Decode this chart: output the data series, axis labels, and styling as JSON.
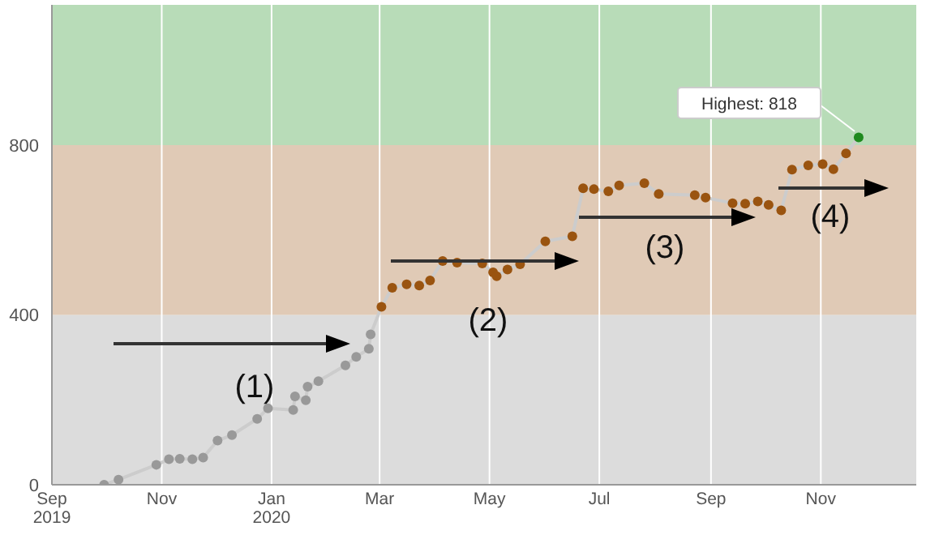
{
  "chart_data": {
    "type": "line",
    "x": [
      "2019-09-30",
      "2019-10-08",
      "2019-10-29",
      "2019-11-05",
      "2019-11-11",
      "2019-11-18",
      "2019-11-24",
      "2019-12-02",
      "2019-12-10",
      "2019-12-24",
      "2019-12-30",
      "2020-01-13",
      "2020-01-14",
      "2020-01-20",
      "2020-01-21",
      "2020-01-27",
      "2020-02-11",
      "2020-02-17",
      "2020-02-24",
      "2020-02-25",
      "2020-03-02",
      "2020-03-08",
      "2020-03-16",
      "2020-03-23",
      "2020-03-29",
      "2020-04-05",
      "2020-04-13",
      "2020-04-27",
      "2020-05-03",
      "2020-05-05",
      "2020-05-11",
      "2020-05-18",
      "2020-06-01",
      "2020-06-16",
      "2020-06-22",
      "2020-06-28",
      "2020-07-06",
      "2020-07-12",
      "2020-07-26",
      "2020-08-03",
      "2020-08-23",
      "2020-08-29",
      "2020-09-13",
      "2020-09-20",
      "2020-09-27",
      "2020-10-03",
      "2020-10-10",
      "2020-10-16",
      "2020-10-25",
      "2020-11-02",
      "2020-11-08",
      "2020-11-15",
      "2020-11-22"
    ],
    "series": [
      {
        "color": "#cccccc",
        "values": [
          0,
          12,
          47,
          60,
          61,
          60,
          64,
          104,
          117,
          155,
          180,
          176,
          208,
          199,
          231,
          244,
          281,
          301,
          320,
          354,
          419,
          464,
          472,
          469,
          481,
          527,
          523,
          521,
          500,
          491,
          507,
          519,
          573,
          585,
          698,
          696,
          691,
          705,
          710,
          685,
          682,
          676,
          663,
          662,
          667,
          659,
          646,
          742,
          752,
          755,
          743,
          780,
          818
        ],
        "colors": [
          "#999999",
          "#999999",
          "#999999",
          "#999999",
          "#999999",
          "#999999",
          "#999999",
          "#999999",
          "#999999",
          "#999999",
          "#999999",
          "#999999",
          "#999999",
          "#999999",
          "#999999",
          "#999999",
          "#999999",
          "#999999",
          "#999999",
          "#999999",
          "#9a5410",
          "#9a5410",
          "#9a5410",
          "#9a5410",
          "#9a5410",
          "#9a5410",
          "#9a5410",
          "#9a5410",
          "#9a5410",
          "#9a5410",
          "#9a5410",
          "#9a5410",
          "#9a5410",
          "#9a5410",
          "#9a5410",
          "#9a5410",
          "#9a5410",
          "#9a5410",
          "#9a5410",
          "#9a5410",
          "#9a5410",
          "#9a5410",
          "#9a5410",
          "#9a5410",
          "#9a5410",
          "#9a5410",
          "#9a5410",
          "#9a5410",
          "#9a5410",
          "#9a5410",
          "#9a5410",
          "#9a5410",
          "#1e8a1e"
        ]
      }
    ],
    "marker": "circle",
    "xlim": [
      "2019-09-01",
      "2020-12-24"
    ],
    "xticks": [
      {
        "value": "2019-09-01",
        "label": "Sep\n2019"
      },
      {
        "value": "2019-11-01",
        "label": "Nov"
      },
      {
        "value": "2020-01-01",
        "label": "Jan\n2020"
      },
      {
        "value": "2020-03-01",
        "label": "Mar"
      },
      {
        "value": "2020-05-01",
        "label": "May"
      },
      {
        "value": "2020-07-01",
        "label": "Jul"
      },
      {
        "value": "2020-09-01",
        "label": "Sep"
      },
      {
        "value": "2020-11-01",
        "label": "Nov"
      }
    ],
    "ylim": [
      0,
      1130
    ],
    "yticks": [
      0,
      400,
      800
    ],
    "grid": "x",
    "bands": [
      {
        "axis": "y",
        "from": 0,
        "to": 400,
        "color": "#dcdcdc"
      },
      {
        "axis": "y",
        "from": 400,
        "to": 800,
        "color": "#e0cab6"
      },
      {
        "axis": "y",
        "from": 800,
        "to": 1130,
        "color": "#b8dcb8"
      }
    ],
    "annotations": [
      "Highest: 818",
      "(1)",
      "(2)",
      "(3)",
      "(4)"
    ]
  }
}
